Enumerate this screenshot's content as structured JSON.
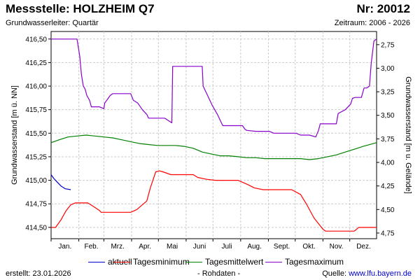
{
  "header": {
    "title": "Messstelle: HOLZHEIM Q7",
    "nr": "Nr: 20012",
    "subtitle": "Grundwasserleiter: Quartär",
    "period": "Zeitraum: 2006 - 2026"
  },
  "footer": {
    "created_label": "erstellt:",
    "created_date": "23.01.2026",
    "raw": "- Rohdaten -",
    "source_label": "Quelle:",
    "source_url": "www.lfu.bayern.de"
  },
  "chart_data": {
    "type": "line",
    "x_unit": "day_of_year",
    "xlim": [
      1,
      365
    ],
    "months": [
      "Jan.",
      "Feb.",
      "Mrz.",
      "Apr.",
      "Mai",
      "Juni",
      "Juli",
      "Aug.",
      "Sept.",
      "Okt.",
      "Nov.",
      "Dez."
    ],
    "ylabel": "Grundwasserstand [m ü. NN]",
    "ylim": [
      414.38,
      416.58
    ],
    "yticks": [
      414.5,
      414.75,
      415.0,
      415.25,
      415.5,
      415.75,
      416.0,
      416.25,
      416.5
    ],
    "ytick_labels": [
      "414,50",
      "414,75",
      "415,00",
      "415,25",
      "415,50",
      "415,75",
      "416,00",
      "416,25",
      "416,50"
    ],
    "y2label": "Grundwasserstand [m u. Gelände]",
    "y2_ticks": [
      {
        "label": "2,75",
        "nn": 416.44
      },
      {
        "label": "3,00",
        "nn": 416.19
      },
      {
        "label": "3,25",
        "nn": 415.94
      },
      {
        "label": "3,50",
        "nn": 415.69
      },
      {
        "label": "3,75",
        "nn": 415.44
      },
      {
        "label": "4,00",
        "nn": 415.19
      },
      {
        "label": "4,25",
        "nn": 414.94
      },
      {
        "label": "4,50",
        "nn": 414.69
      },
      {
        "label": "4,75",
        "nn": 414.44
      }
    ],
    "grid": true,
    "series": [
      {
        "name": "aktuell",
        "color": "#0000cc",
        "points": [
          [
            1,
            415.06
          ],
          [
            4,
            415.02
          ],
          [
            8,
            414.98
          ],
          [
            12,
            414.94
          ],
          [
            17,
            414.91
          ],
          [
            23,
            414.9
          ]
        ]
      },
      {
        "name": "Tagesminimum",
        "color": "#ff0000",
        "points": [
          [
            1,
            414.5
          ],
          [
            6,
            414.5
          ],
          [
            12,
            414.58
          ],
          [
            18,
            414.68
          ],
          [
            23,
            414.74
          ],
          [
            28,
            414.76
          ],
          [
            37,
            414.76
          ],
          [
            42,
            414.76
          ],
          [
            47,
            414.73
          ],
          [
            55,
            414.68
          ],
          [
            57,
            414.66
          ],
          [
            70,
            414.66
          ],
          [
            80,
            414.66
          ],
          [
            90,
            414.66
          ],
          [
            97,
            414.69
          ],
          [
            103,
            414.74
          ],
          [
            108,
            414.78
          ],
          [
            112,
            414.92
          ],
          [
            118,
            415.09
          ],
          [
            122,
            415.1
          ],
          [
            126,
            415.09
          ],
          [
            135,
            415.06
          ],
          [
            150,
            415.06
          ],
          [
            160,
            415.06
          ],
          [
            165,
            415.03
          ],
          [
            175,
            415.01
          ],
          [
            185,
            415.0
          ],
          [
            210,
            415.0
          ],
          [
            215,
            414.98
          ],
          [
            222,
            414.95
          ],
          [
            228,
            414.92
          ],
          [
            238,
            414.9
          ],
          [
            258,
            414.9
          ],
          [
            270,
            414.9
          ],
          [
            280,
            414.85
          ],
          [
            287,
            414.74
          ],
          [
            295,
            414.6
          ],
          [
            305,
            414.48
          ],
          [
            308,
            414.46
          ],
          [
            320,
            414.46
          ],
          [
            330,
            414.46
          ],
          [
            340,
            414.46
          ],
          [
            345,
            414.5
          ],
          [
            365,
            414.5
          ]
        ]
      },
      {
        "name": "Tagesmittelwert",
        "color": "#008000",
        "points": [
          [
            1,
            415.4
          ],
          [
            10,
            415.43
          ],
          [
            20,
            415.46
          ],
          [
            30,
            415.47
          ],
          [
            40,
            415.48
          ],
          [
            50,
            415.47
          ],
          [
            60,
            415.46
          ],
          [
            70,
            415.45
          ],
          [
            80,
            415.43
          ],
          [
            90,
            415.41
          ],
          [
            100,
            415.39
          ],
          [
            110,
            415.38
          ],
          [
            120,
            415.37
          ],
          [
            130,
            415.37
          ],
          [
            140,
            415.37
          ],
          [
            150,
            415.36
          ],
          [
            160,
            415.34
          ],
          [
            170,
            415.3
          ],
          [
            180,
            415.28
          ],
          [
            190,
            415.26
          ],
          [
            200,
            415.26
          ],
          [
            210,
            415.25
          ],
          [
            220,
            415.24
          ],
          [
            230,
            415.24
          ],
          [
            240,
            415.23
          ],
          [
            250,
            415.23
          ],
          [
            260,
            415.23
          ],
          [
            270,
            415.23
          ],
          [
            280,
            415.23
          ],
          [
            290,
            415.22
          ],
          [
            300,
            415.23
          ],
          [
            310,
            415.25
          ],
          [
            320,
            415.27
          ],
          [
            330,
            415.3
          ],
          [
            340,
            415.33
          ],
          [
            350,
            415.36
          ],
          [
            365,
            415.4
          ]
        ]
      },
      {
        "name": "Tagesmaximum",
        "color": "#8800cc",
        "points": [
          [
            1,
            416.5
          ],
          [
            30,
            416.5
          ],
          [
            33,
            416.32
          ],
          [
            35,
            416.12
          ],
          [
            37,
            416.0
          ],
          [
            39,
            415.97
          ],
          [
            41,
            415.9
          ],
          [
            44,
            415.85
          ],
          [
            46,
            415.78
          ],
          [
            55,
            415.78
          ],
          [
            60,
            415.76
          ],
          [
            61,
            415.82
          ],
          [
            64,
            415.86
          ],
          [
            67,
            415.9
          ],
          [
            70,
            415.92
          ],
          [
            80,
            415.92
          ],
          [
            90,
            415.92
          ],
          [
            93,
            415.85
          ],
          [
            98,
            415.82
          ],
          [
            103,
            415.75
          ],
          [
            108,
            415.7
          ],
          [
            110,
            415.66
          ],
          [
            128,
            415.66
          ],
          [
            136,
            415.61
          ],
          [
            137,
            416.21
          ],
          [
            170,
            416.21
          ],
          [
            171,
            416.0
          ],
          [
            176,
            415.9
          ],
          [
            181,
            415.8
          ],
          [
            187,
            415.7
          ],
          [
            191,
            415.62
          ],
          [
            193,
            415.58
          ],
          [
            210,
            415.58
          ],
          [
            215,
            415.58
          ],
          [
            218,
            415.54
          ],
          [
            220,
            415.53
          ],
          [
            230,
            415.52
          ],
          [
            245,
            415.52
          ],
          [
            250,
            415.5
          ],
          [
            265,
            415.5
          ],
          [
            275,
            415.5
          ],
          [
            280,
            415.48
          ],
          [
            290,
            415.48
          ],
          [
            297,
            415.46
          ],
          [
            300,
            415.53
          ],
          [
            302,
            415.6
          ],
          [
            320,
            415.6
          ],
          [
            322,
            415.71
          ],
          [
            330,
            415.75
          ],
          [
            336,
            415.81
          ],
          [
            338,
            415.87
          ],
          [
            341,
            415.88
          ],
          [
            348,
            415.88
          ],
          [
            351,
            415.98
          ],
          [
            354,
            415.98
          ],
          [
            357,
            416.0
          ],
          [
            359,
            416.24
          ],
          [
            362,
            416.48
          ],
          [
            365,
            416.5
          ]
        ]
      }
    ]
  }
}
